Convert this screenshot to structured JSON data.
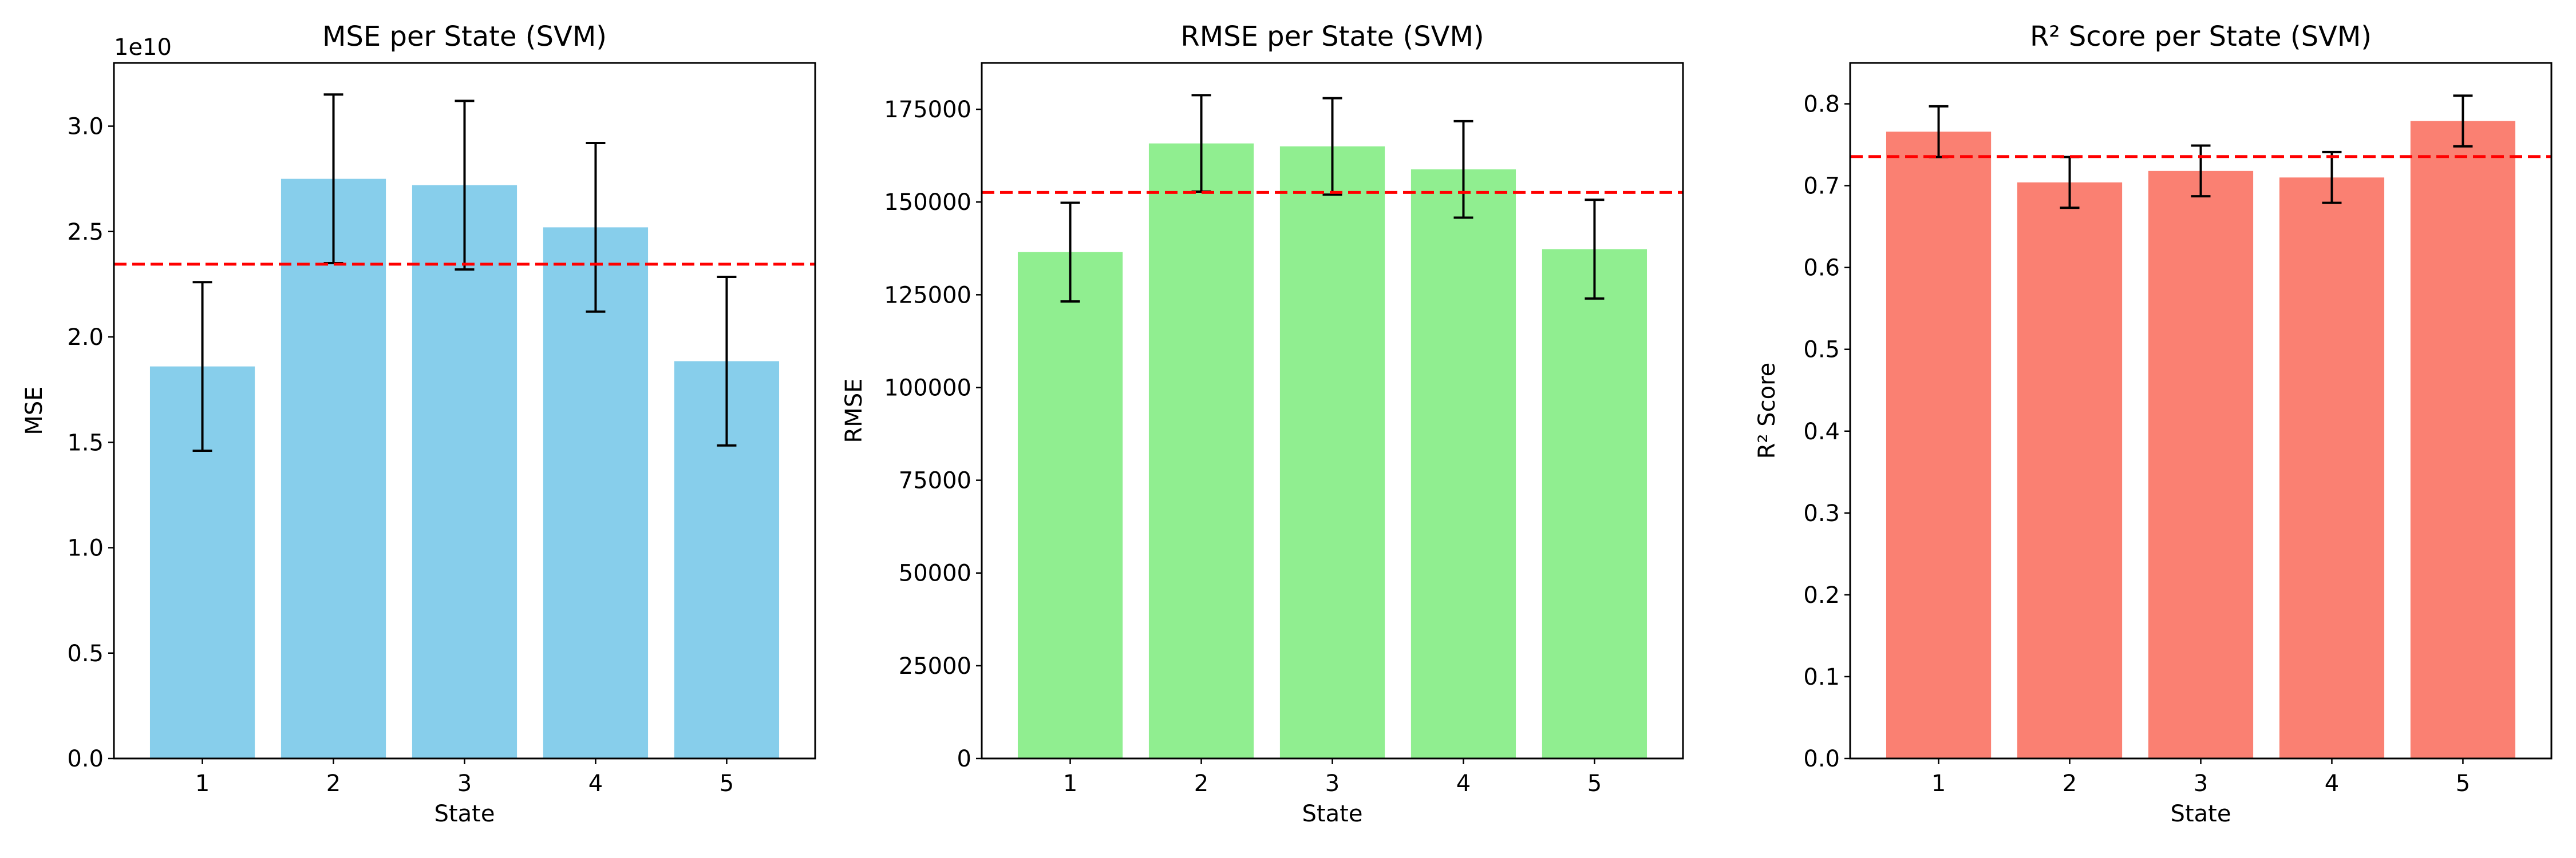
{
  "chart_data": [
    {
      "type": "bar",
      "title": "MSE per State (SVM)",
      "xlabel": "State",
      "ylabel": "MSE",
      "y_offset_label": "1e10",
      "categories": [
        "1",
        "2",
        "3",
        "4",
        "5"
      ],
      "values": [
        1.86,
        2.75,
        2.72,
        2.52,
        1.885
      ],
      "errors": [
        0.4,
        0.4,
        0.4,
        0.4,
        0.4
      ],
      "mean_line": 2.345,
      "ylim": [
        0,
        3.3
      ],
      "yticks": [
        0.0,
        0.5,
        1.0,
        1.5,
        2.0,
        2.5,
        3.0
      ],
      "ytick_labels": [
        "0.0",
        "0.5",
        "1.0",
        "1.5",
        "2.0",
        "2.5",
        "3.0"
      ],
      "bar_color": "#87CEEB",
      "mean_line_color": "#FF0000",
      "grid": false
    },
    {
      "type": "bar",
      "title": "RMSE per State (SVM)",
      "xlabel": "State",
      "ylabel": "RMSE",
      "y_offset_label": "",
      "categories": [
        "1",
        "2",
        "3",
        "4",
        "5"
      ],
      "values": [
        136500,
        165800,
        165000,
        158800,
        137300
      ],
      "errors": [
        13300,
        13000,
        13000,
        13000,
        13300
      ],
      "mean_line": 152600,
      "ylim": [
        0,
        187500
      ],
      "yticks": [
        0,
        25000,
        50000,
        75000,
        100000,
        125000,
        150000,
        175000
      ],
      "ytick_labels": [
        "0",
        "25000",
        "50000",
        "75000",
        "100000",
        "125000",
        "150000",
        "175000"
      ],
      "bar_color": "#90EE90",
      "mean_line_color": "#FF0000",
      "grid": false
    },
    {
      "type": "bar",
      "title": "R² Score per State (SVM)",
      "xlabel": "State",
      "ylabel": "R² Score",
      "y_offset_label": "",
      "categories": [
        "1",
        "2",
        "3",
        "4",
        "5"
      ],
      "values": [
        0.766,
        0.704,
        0.718,
        0.71,
        0.779
      ],
      "errors": [
        0.031,
        0.031,
        0.031,
        0.031,
        0.031
      ],
      "mean_line": 0.7355,
      "ylim": [
        0,
        0.85
      ],
      "yticks": [
        0.0,
        0.1,
        0.2,
        0.3,
        0.4,
        0.5,
        0.6,
        0.7,
        0.8
      ],
      "ytick_labels": [
        "0.0",
        "0.1",
        "0.2",
        "0.3",
        "0.4",
        "0.5",
        "0.6",
        "0.7",
        "0.8"
      ],
      "bar_color": "#FA8072",
      "mean_line_color": "#FF0000",
      "grid": false
    }
  ]
}
